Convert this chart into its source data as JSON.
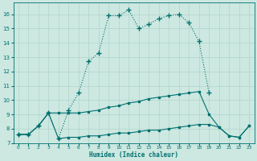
{
  "xlabel": "Humidex (Indice chaleur)",
  "bg_color": "#cce8e0",
  "line_color": "#007070",
  "grid_color": "#b0d4cc",
  "xlim": [
    -0.5,
    23.5
  ],
  "ylim": [
    7.0,
    16.8
  ],
  "xticks": [
    0,
    1,
    2,
    3,
    4,
    5,
    6,
    7,
    8,
    9,
    10,
    11,
    12,
    13,
    14,
    15,
    16,
    17,
    18,
    19,
    20,
    21,
    22,
    23
  ],
  "yticks": [
    7,
    8,
    9,
    10,
    11,
    12,
    13,
    14,
    15,
    16
  ],
  "line_top_x": [
    0,
    1,
    2,
    3,
    4,
    5,
    6,
    7,
    8,
    9,
    10,
    11,
    12,
    13,
    14,
    15,
    16,
    17,
    18,
    19
  ],
  "line_top_y": [
    7.6,
    7.6,
    8.2,
    9.1,
    7.3,
    9.3,
    10.5,
    12.7,
    13.3,
    15.9,
    15.9,
    16.3,
    15.0,
    15.3,
    15.7,
    15.9,
    16.0,
    15.4,
    14.1,
    10.5
  ],
  "line_mid_x": [
    0,
    1,
    2,
    3,
    4,
    5,
    6,
    7,
    8,
    9,
    10,
    11,
    12,
    13,
    14,
    15,
    16,
    17,
    18,
    19,
    20,
    21,
    22,
    23
  ],
  "line_mid_y": [
    7.6,
    7.6,
    8.2,
    9.1,
    9.1,
    9.1,
    9.1,
    9.2,
    9.3,
    9.5,
    9.6,
    9.8,
    9.9,
    10.1,
    10.2,
    10.3,
    10.4,
    10.5,
    10.6,
    9.0,
    8.1,
    7.5,
    7.4,
    8.2
  ],
  "line_bot_x": [
    0,
    1,
    2,
    3,
    4,
    5,
    6,
    7,
    8,
    9,
    10,
    11,
    12,
    13,
    14,
    15,
    16,
    17,
    18,
    19,
    20,
    21,
    22,
    23
  ],
  "line_bot_y": [
    7.6,
    7.6,
    8.2,
    9.1,
    7.3,
    7.4,
    7.4,
    7.5,
    7.5,
    7.6,
    7.7,
    7.7,
    7.8,
    7.9,
    7.9,
    8.0,
    8.1,
    8.2,
    8.3,
    8.3,
    8.1,
    7.5,
    7.4,
    8.2
  ],
  "lw": 0.8,
  "ms": 1.8
}
